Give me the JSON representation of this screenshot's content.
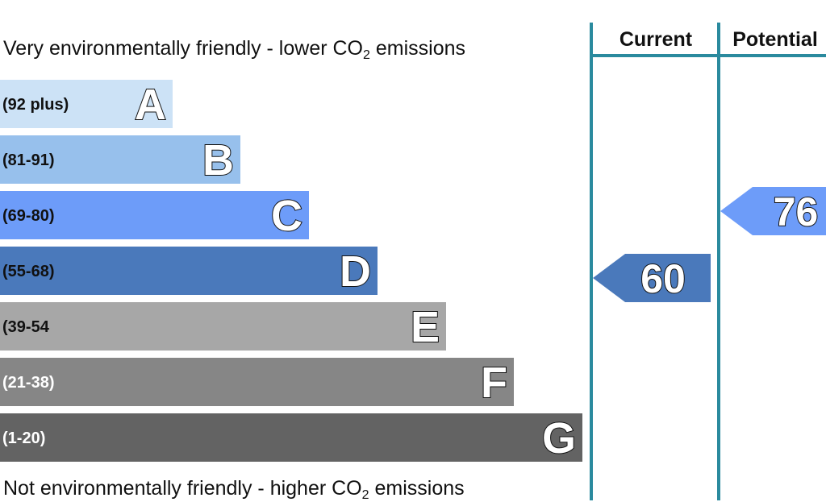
{
  "captions": {
    "top_pre": "Very environmentally friendly - lower CO",
    "top_sub": "2",
    "top_post": " emissions",
    "bottom_pre": "Not environmentally friendly - higher CO",
    "bottom_sub": "2",
    "bottom_post": " emissions"
  },
  "colors": {
    "divider": "#2a8a9e",
    "range_text_dark": "#111111",
    "range_text_light": "#ffffff"
  },
  "chart_data": {
    "type": "bar",
    "columns": [
      "Current",
      "Potential"
    ],
    "bands": [
      {
        "letter": "A",
        "range": "(92 plus)",
        "min": 92,
        "max": null,
        "color": "#cce2f6",
        "range_color": "dark"
      },
      {
        "letter": "B",
        "range": "(81-91)",
        "min": 81,
        "max": 91,
        "color": "#97c0ec",
        "range_color": "dark"
      },
      {
        "letter": "C",
        "range": "(69-80)",
        "min": 69,
        "max": 80,
        "color": "#6d9cf9",
        "range_color": "dark"
      },
      {
        "letter": "D",
        "range": "(55-68)",
        "min": 55,
        "max": 68,
        "color": "#4a79bb",
        "range_color": "dark"
      },
      {
        "letter": "E",
        "range": "(39-54",
        "min": 39,
        "max": 54,
        "color": "#a7a7a7",
        "range_color": "dark"
      },
      {
        "letter": "F",
        "range": "(21-38)",
        "min": 21,
        "max": 38,
        "color": "#868686",
        "range_color": "light"
      },
      {
        "letter": "G",
        "range": "(1-20)",
        "min": 1,
        "max": 20,
        "color": "#636363",
        "range_color": "light"
      }
    ],
    "ratings": [
      {
        "column": "Current",
        "value": 60,
        "band": "D",
        "color": "#4a79bb"
      },
      {
        "column": "Potential",
        "value": 76,
        "band": "C",
        "color": "#6d9cf9"
      }
    ]
  }
}
